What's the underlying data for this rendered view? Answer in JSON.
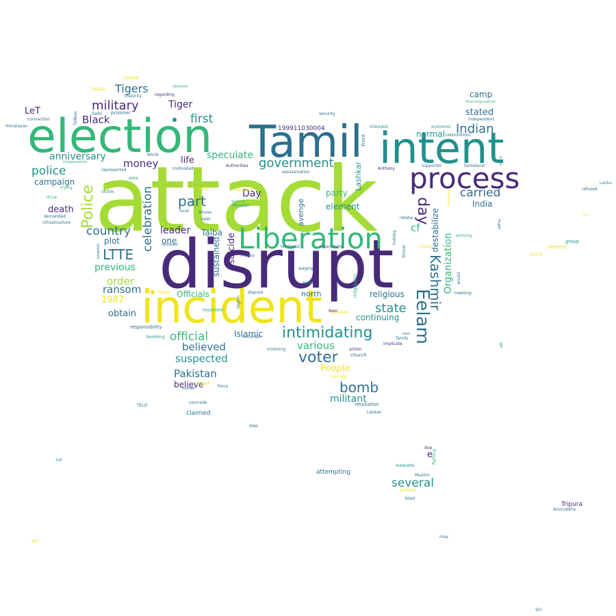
{
  "palette": {
    "purple": "#472a7a",
    "blue": "#2c6f8e",
    "teal": "#21908d",
    "green": "#35b779",
    "lime": "#a5db36",
    "yellow": "#f0e41a",
    "background": "#ffffff"
  },
  "words": {
    "attack": "attack",
    "disrupt": "disrupt",
    "election": "election",
    "tamil": "Tamil",
    "intent": "intent",
    "incident": "incident",
    "process": "process",
    "liberation": "Liberation",
    "eelam": "Eelam",
    "kashmir": "Kashmir",
    "intimidating": "intimidating",
    "voter": "voter",
    "bomb": "bomb",
    "militant": "militant",
    "state": "state",
    "several": "several",
    "day_big": "day",
    "indian": "Indian",
    "carried": "carried",
    "india": "India",
    "camp": "camp",
    "stated": "stated",
    "normal": "normal",
    "government": "government",
    "first": "first",
    "speculate": "speculate",
    "part": "part",
    "police_v": "Police",
    "police": "police",
    "military": "military",
    "tigers": "Tigers",
    "tiger": "Tiger",
    "black": "Black",
    "let": "LeT",
    "anniversary": "anniversary",
    "campaign": "campaign",
    "money": "money",
    "life": "life",
    "ltte": "LTTE",
    "country": "country",
    "celebration": "celebration",
    "previous": "previous",
    "order": "order",
    "ransom": "ransom",
    "y1987": "1987",
    "obtain": "obtain",
    "official": "official",
    "believed": "believed",
    "suspected": "suspected",
    "pakistan": "Pakistan",
    "believe": "believe",
    "death": "death",
    "plot": "plot",
    "leader": "leader",
    "one": "one",
    "taiba": "Taiba",
    "officials": "Officials",
    "sustained": "sustained",
    "suicide": "suicide",
    "day_small": "Day",
    "avenge": "avenge",
    "element": "element",
    "party": "party",
    "various": "various",
    "people": "People",
    "islamic": "Islamic",
    "north": "north",
    "religious": "religious",
    "continuing": "continuing",
    "cf": "cf",
    "destabilize": "destabilize",
    "organization": "Organization",
    "lashkar": "Lashkar",
    "e": "e",
    "claimed": "claimed",
    "number_id": "199911030004",
    "attempting": "attempting",
    "tripura": "Tripura",
    "sri": "Sri",
    "anuruddha": "Anuruddha",
    "kill": "kill",
    "war": "war",
    "may": "may",
    "lanka": "Lanka",
    "refused": "refused",
    "group": "group",
    "attempt": "attempt",
    "plus": "PLOTE",
    "his": "his",
    "united": "United",
    "patiala": "Patiala",
    "remove": "remove",
    "himalayan": "Himalayan",
    "connection": "connection",
    "delhi": "Delhi",
    "prisoner": "prisoner",
    "majority": "majority",
    "regarding": "regarding",
    "taliban": "Taliban",
    "security": "security",
    "shanmuganathan": "Shanmuganathan",
    "independent": "independent",
    "economic": "economic",
    "front": "Front",
    "intended": "intended",
    "num2": "199903060002",
    "office": "office",
    "homeland": "homeland",
    "supporter": "supporter",
    "anthony": "Anthony",
    "assassination": "assassination",
    "authorities": "Authorities",
    "tehrik": "Tehrik",
    "motivated": "motivated",
    "represented": "represented",
    "independence": "independence",
    "trying": "trying",
    "victim": "victim",
    "drive": "drive",
    "demanded": "demanded",
    "infrastructure": "infrastructure",
    "area": "area",
    "rivalry": "rivalry",
    "whose": "whose",
    "held": "held",
    "local": "local",
    "source": "source",
    "minister": "Minister",
    "separate": "separate",
    "northeast": "northeast",
    "establish": "establish",
    "possibly": "Possibly",
    "territorial": "territorial",
    "assassinate": "assassinate",
    "waging": "waging",
    "rival": "rival",
    "mayor": "Mayor",
    "dispute": "dispute",
    "reported": "reported",
    "region": "region",
    "responsibility": "responsibility",
    "bombing": "bombing",
    "occurred": "occurred",
    "staged": "staged",
    "force": "force",
    "comrade": "comrade",
    "telo": "TELO",
    "step": "step",
    "coincide": "coincide",
    "retaliation": "retaliation",
    "lankan": "Lankan",
    "implicate": "implicate",
    "church": "church",
    "action": "action",
    "tamils": "Tamils",
    "new": "New",
    "navi": "navi",
    "religiously": "religiously",
    "meeting": "meeting",
    "would": "would",
    "working": "working",
    "jaffna": "Jaffna",
    "retake": "retake",
    "holiday": "holiday",
    "threat": "threat",
    "tribal": "tribal",
    "arrested": "arrested",
    "involving": "involving",
    "air": "air",
    "fighting": "fighting",
    "due": "due",
    "hatwatte": "Hatwatte",
    "muslim": "Muslim",
    "political": "political",
    "blast": "blast",
    "resistance": "resistance",
    "number": "number"
  }
}
